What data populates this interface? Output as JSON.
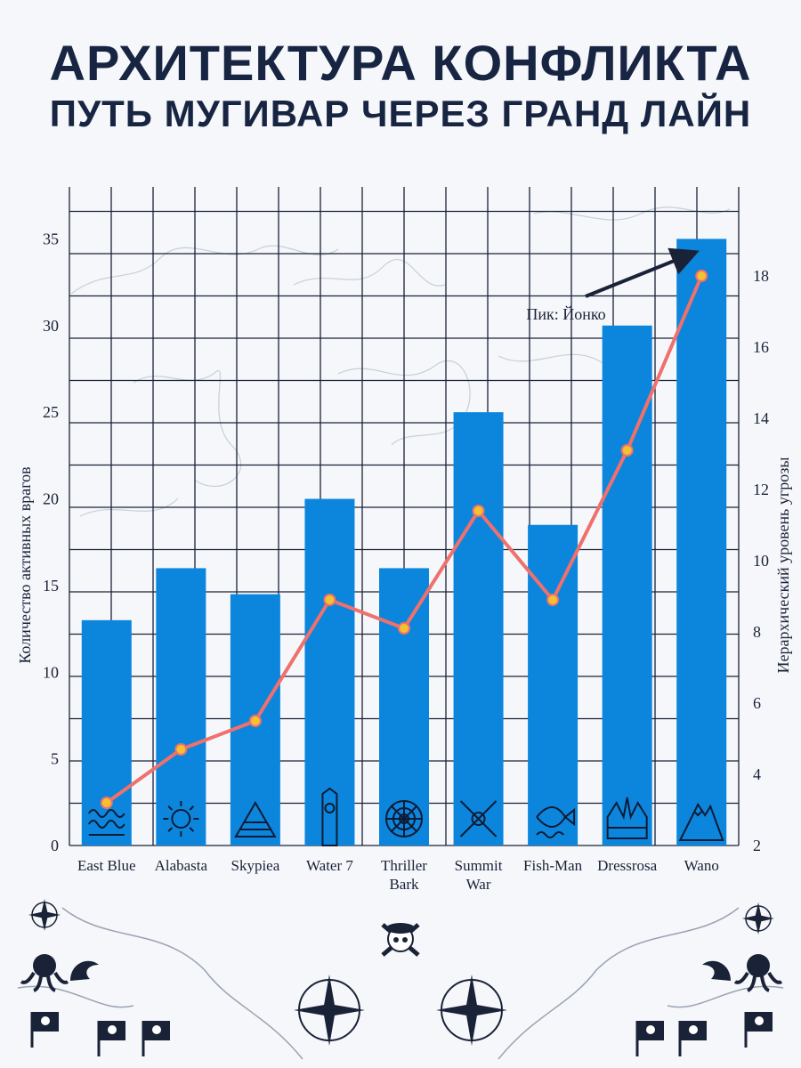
{
  "title": "АРХИТЕКТУРА КОНФЛИКТА",
  "subtitle": "ПУТЬ МУГИВАР ЧЕРЕЗ ГРАНД ЛАЙН",
  "chart_data": {
    "type": "bar+line",
    "categories": [
      [
        "East Blue"
      ],
      [
        "Alabasta"
      ],
      [
        "Skypiea"
      ],
      [
        "Water 7"
      ],
      [
        "Thriller",
        "Bark"
      ],
      [
        "Summit",
        "War"
      ],
      [
        "Fish-Man"
      ],
      [
        "Dressrosa"
      ],
      [
        "Wano"
      ]
    ],
    "category_icons": [
      "waves-icon",
      "sun-icon",
      "pyramid-icon",
      "clock-tower-icon",
      "spiderweb-icon",
      "crossed-swords-icon",
      "fish-icon",
      "crown-icon",
      "mountain-icon"
    ],
    "series": [
      {
        "kind": "bar",
        "axis": "left",
        "color": "#0b86dc",
        "values": [
          13,
          16,
          14.5,
          20,
          16,
          25,
          18.5,
          30,
          35
        ]
      },
      {
        "kind": "line",
        "axis": "right",
        "color": "#f0706c",
        "marker": "#f2c230",
        "values": [
          3.2,
          4.7,
          5.5,
          8.9,
          8.1,
          11.4,
          8.9,
          13.1,
          18
        ]
      }
    ],
    "left_axis": {
      "label": "Количество активных врагов",
      "ylim": [
        0,
        38
      ],
      "ticks": [
        0,
        5,
        10,
        15,
        20,
        25,
        30,
        35
      ]
    },
    "right_axis": {
      "label": "Иерархический уровень угрозы",
      "ylim": [
        2,
        20.5
      ],
      "ticks": [
        2,
        4,
        6,
        8,
        10,
        12,
        14,
        16,
        18
      ]
    },
    "annotation": {
      "text": "Пик: Йонко",
      "target_index": 8
    },
    "grid": true
  }
}
